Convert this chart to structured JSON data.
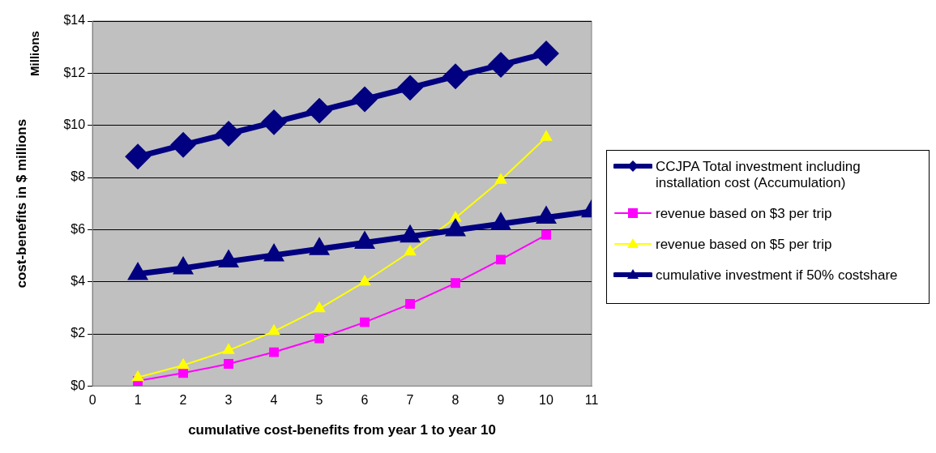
{
  "chart_data": {
    "type": "line",
    "xlabel": "cumulative cost-benefits from year 1 to year 10",
    "ylabel": "cost-benefits in $ millions",
    "annotations": [
      "Millions"
    ],
    "xlim": [
      0,
      11
    ],
    "xticks": [
      0,
      1,
      2,
      3,
      4,
      5,
      6,
      7,
      8,
      9,
      10,
      11
    ],
    "ylim": [
      0,
      14
    ],
    "yticks": [
      {
        "value": 0,
        "label": "$0"
      },
      {
        "value": 2,
        "label": "$2"
      },
      {
        "value": 4,
        "label": "$4"
      },
      {
        "value": 6,
        "label": "$6"
      },
      {
        "value": 8,
        "label": "$8"
      },
      {
        "value": 10,
        "label": "$10"
      },
      {
        "value": 12,
        "label": "$12"
      },
      {
        "value": 14,
        "label": "$14"
      }
    ],
    "grid": "y",
    "legend": "right",
    "series": [
      {
        "name": "CCJPA Total investment including installation cost (Accumulation)",
        "color": "#000080",
        "marker": "diamond",
        "x": [
          1,
          2,
          3,
          4,
          5,
          6,
          7,
          8,
          9,
          10
        ],
        "values": [
          8.8,
          9.25,
          9.68,
          10.12,
          10.56,
          11.0,
          11.44,
          11.88,
          12.32,
          12.76
        ]
      },
      {
        "name": "revenue based on $3 per trip",
        "color": "#ff00ff",
        "marker": "square",
        "x": [
          1,
          2,
          3,
          4,
          5,
          6,
          7,
          8,
          9,
          10
        ],
        "values": [
          0.2,
          0.5,
          0.85,
          1.3,
          1.83,
          2.45,
          3.15,
          3.95,
          4.85,
          5.8
        ]
      },
      {
        "name": "revenue based on $5 per trip",
        "color": "#ffff00",
        "marker": "triangle",
        "x": [
          1,
          2,
          3,
          4,
          5,
          6,
          7,
          8,
          9,
          10
        ],
        "values": [
          0.33,
          0.8,
          1.37,
          2.1,
          2.97,
          4.0,
          5.15,
          6.45,
          7.9,
          9.55
        ]
      },
      {
        "name": "cumulative investment if 50% costshare",
        "color": "#000080",
        "marker": "triangle",
        "x": [
          1,
          2,
          3,
          4,
          5,
          6,
          7,
          8,
          9,
          10,
          11
        ],
        "values": [
          4.3,
          4.52,
          4.78,
          5.02,
          5.26,
          5.5,
          5.74,
          5.98,
          6.22,
          6.46,
          6.7
        ]
      }
    ]
  }
}
